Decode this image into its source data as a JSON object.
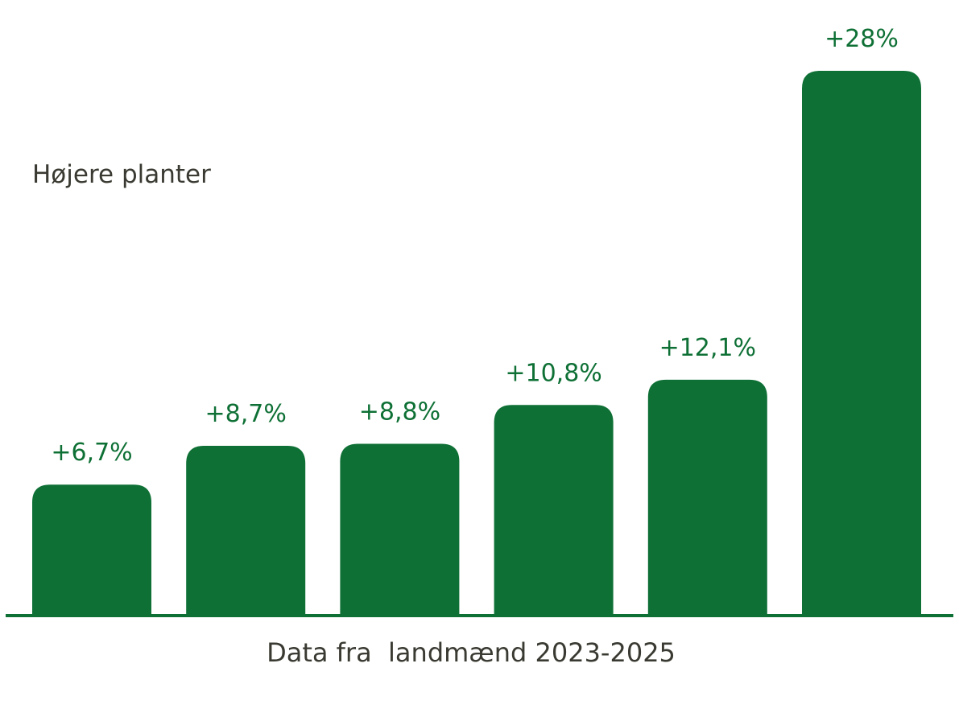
{
  "chart_data": {
    "type": "bar",
    "title": "Højere planter",
    "xlabel": "Data fra  landmænd 2023-2025",
    "ylabel": "",
    "categories": [
      "",
      "",
      "",
      "",
      "",
      ""
    ],
    "values": [
      6.7,
      8.7,
      8.8,
      10.8,
      12.1,
      28
    ],
    "value_labels": [
      "+6,7%",
      "+8,7%",
      "+8,8%",
      "+10,8%",
      "+12,1%",
      "+28%"
    ],
    "ylim": [
      0,
      28
    ],
    "grid": false,
    "legend": "none",
    "colors": {
      "bar": "#0e7035",
      "label": "#0e7035",
      "text": "#3a3a32",
      "axis": "#0e7035"
    }
  }
}
